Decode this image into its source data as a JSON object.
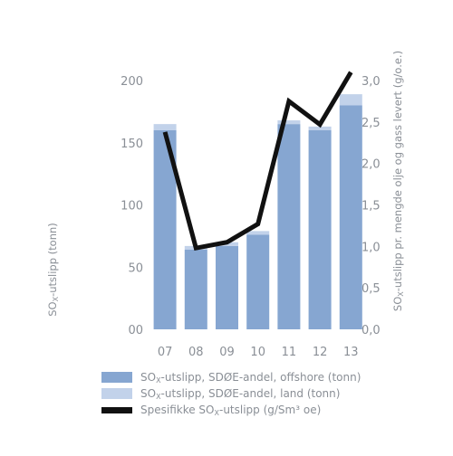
{
  "chart_data": {
    "type": "bar",
    "categories": [
      "07",
      "08",
      "09",
      "10",
      "11",
      "12",
      "13"
    ],
    "series": [
      {
        "name": "SOX-utslipp, SDØE-andel, offshore (tonn)",
        "type": "bar",
        "axis": "left",
        "stack": "emissions",
        "color": "#86a6d1",
        "values": [
          160,
          64,
          67,
          76,
          165,
          160,
          180
        ]
      },
      {
        "name": "SOX-utslipp, SDØE-andel, land (tonn)",
        "type": "bar",
        "axis": "left",
        "stack": "emissions",
        "color": "#c2d2ea",
        "values": [
          5,
          3,
          3,
          3,
          3,
          3,
          9
        ]
      },
      {
        "name": "Spesifikke SOX-utslipp (g/Sm3 oe)",
        "type": "line",
        "axis": "right",
        "color": "#111111",
        "values": [
          2.38,
          0.98,
          1.05,
          1.27,
          2.75,
          2.47,
          3.1
        ]
      }
    ],
    "y_left": {
      "label": "SOX-utslipp (tonn)",
      "ticks": [
        "200",
        "150",
        "100",
        "50",
        "00"
      ],
      "tick_values": [
        200,
        150,
        100,
        50,
        0
      ],
      "range": [
        0,
        200
      ]
    },
    "y_right": {
      "label": "SOX-utslipp pr. mengde olje og gass levert (g/o.e.)",
      "ticks": [
        "3,0",
        "2,5",
        "2,0",
        "1,5",
        "1,0",
        "0,5",
        "0,0"
      ],
      "tick_values": [
        3.0,
        2.5,
        2.0,
        1.5,
        1.0,
        0.5,
        0.0
      ],
      "range": [
        0,
        3.0
      ]
    },
    "legend_position": "bottom",
    "grid": false
  },
  "legend": {
    "items": [
      {
        "pre": "SO",
        "sub": "X",
        "post": "-utslipp, SDØE-andel, offshore (tonn)",
        "color": "#86a6d1",
        "kind": "box"
      },
      {
        "pre": "SO",
        "sub": "X",
        "post": "-utslipp, SDØE-andel, land (tonn)",
        "color": "#c2d2ea",
        "kind": "box"
      },
      {
        "pre": "Spesifikke SO",
        "sub": "X",
        "post": "-utslipp (g/Sm³ oe)",
        "color": "#111111",
        "kind": "line"
      }
    ]
  }
}
